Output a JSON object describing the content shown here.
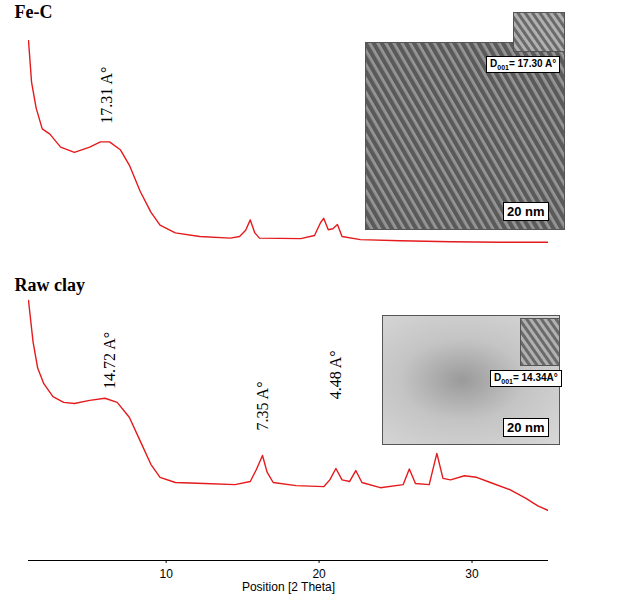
{
  "chart_data": {
    "type": "line",
    "x_label": "Position [2 Theta]",
    "xlim": [
      1,
      35
    ],
    "xticks": [
      10,
      20,
      30
    ],
    "ylim": [
      0,
      100
    ],
    "tick_labels": "x",
    "series": [
      {
        "name": "Fe-C",
        "color": "#e41a1c",
        "x": [
          1.0,
          1.2,
          1.5,
          1.9,
          2.4,
          3.1,
          4.0,
          5.0,
          5.7,
          6.3,
          7.0,
          7.6,
          8.3,
          9.0,
          9.6,
          10.6,
          12.2,
          14.2,
          14.8,
          15.2,
          15.5,
          15.8,
          16.1,
          18.8,
          19.7,
          20.1,
          20.3,
          20.6,
          20.9,
          21.2,
          21.5,
          22.7,
          25.3,
          28.6,
          31.8,
          35.0
        ],
        "values": [
          100,
          92,
          87,
          83,
          82,
          79.5,
          78.5,
          79.5,
          80.5,
          80.5,
          79,
          76,
          71,
          67,
          64.5,
          63,
          62.3,
          62,
          62.3,
          63.5,
          65.5,
          63,
          62,
          61.9,
          62.5,
          65,
          65.8,
          63.6,
          63.8,
          64.6,
          62.3,
          61.7,
          61.5,
          61.3,
          61.2,
          61.2
        ]
      },
      {
        "name": "Raw clay",
        "color": "#e41a1c",
        "x": [
          1.0,
          1.3,
          1.6,
          2.0,
          2.6,
          3.3,
          4.0,
          5.0,
          6.0,
          6.8,
          7.6,
          8.3,
          9.0,
          9.6,
          10.6,
          12.5,
          14.5,
          15.5,
          15.9,
          16.3,
          16.6,
          17.0,
          18.5,
          20.3,
          20.7,
          21.1,
          21.5,
          22.0,
          22.4,
          22.8,
          24.0,
          25.5,
          25.9,
          26.3,
          27.2,
          27.7,
          28.1,
          28.6,
          29.5,
          30.3,
          31.2,
          32.5,
          33.5,
          34.3,
          35.0
        ],
        "values": [
          50,
          42,
          37,
          34,
          31.5,
          30.4,
          30.2,
          30.8,
          31.2,
          30.4,
          27.5,
          23,
          18.5,
          16,
          15,
          14.8,
          14.6,
          15.2,
          17.5,
          20.2,
          17,
          15,
          14.4,
          14.2,
          15.5,
          17.7,
          15.5,
          15.2,
          17.3,
          15,
          14,
          14.6,
          17.6,
          14.8,
          14.6,
          20.6,
          15.8,
          15.5,
          16.3,
          16,
          15,
          13.6,
          12,
          10.5,
          9.6
        ]
      }
    ],
    "annotations": [
      {
        "text": "17.31 A°",
        "x": 6.1,
        "y": 84
      },
      {
        "text": "14.72 A°",
        "x": 6.3,
        "y": 33
      },
      {
        "text": "7.35 A°",
        "x": 16.3,
        "y": 25
      },
      {
        "text": "4.48 A°",
        "x": 21.1,
        "y": 31
      }
    ]
  },
  "insets": [
    {
      "scale_bar": "20 nm",
      "spacing_label": {
        "symbol": "D",
        "index": "001",
        "text": "= 17.30 A°"
      }
    },
    {
      "scale_bar": "20 nm",
      "spacing_label": {
        "symbol": "D",
        "index": "001",
        "text": "= 14.34A°"
      }
    }
  ]
}
